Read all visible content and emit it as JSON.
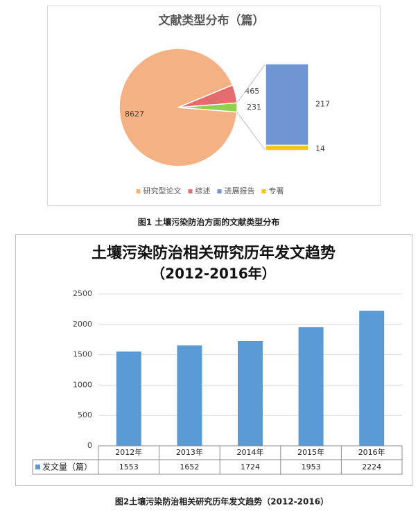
{
  "chart_data": [
    {
      "type": "pie-of-bar",
      "title": "文献类型分布（篇）",
      "categories": [
        "研究型论文",
        "综述",
        null
      ],
      "values": [
        8627,
        465,
        231
      ],
      "colors": [
        "#f4b183",
        "#e46c6c",
        "#92d050"
      ],
      "bar_categories": [
        "进展报告",
        "专著"
      ],
      "bar_values": [
        217,
        14
      ],
      "bar_colors": [
        "#7094d4",
        "#f5c518"
      ],
      "legend": "bottom"
    },
    {
      "type": "bar",
      "title": "土壤污染防治相关研究历年发文趋势",
      "subtitle": "（2012-2016年）",
      "categories": [
        "2012年",
        "2013年",
        "2014年",
        "2015年",
        "2016年"
      ],
      "series": [
        {
          "name": "发文量（篇）",
          "color": "#5b9bd5",
          "values": [
            1553,
            1652,
            1724,
            1953,
            2224
          ]
        }
      ],
      "ylim": [
        0,
        2500
      ],
      "yticks": [
        0,
        500,
        1000,
        1500,
        2000,
        2500
      ],
      "grid": true,
      "data_table": true
    }
  ],
  "captions": [
    "图1  土壤污染防治方面的文献类型分布",
    "图2土壤污染防治相关研究历年发文趋势（2012-2016）"
  ]
}
